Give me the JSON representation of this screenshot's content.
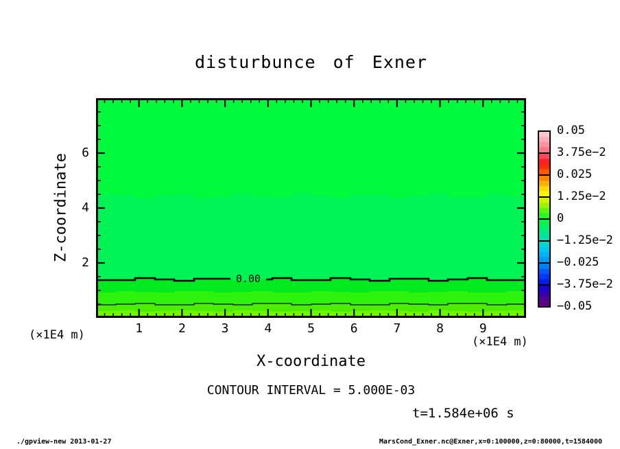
{
  "title": "disturbunce of Exner",
  "x_axis": {
    "label": "X-coordinate",
    "unit": "(×1E4 m)",
    "major_ticks": [
      1,
      2,
      3,
      4,
      5,
      6,
      7,
      8,
      9
    ],
    "minor_step": 0.2,
    "range": [
      0,
      10
    ]
  },
  "y_axis": {
    "label": "Z-coordinate",
    "unit": "(×1E4 m)",
    "major_ticks": [
      2,
      4,
      6
    ],
    "minor_step": 0.5,
    "range": [
      0,
      8
    ]
  },
  "contour_zero_label": "0.00",
  "contour_interval_label": "CONTOUR INTERVAL = 5.000E-03",
  "time_label": "t=1.584e+06 s",
  "footer": {
    "left": "./gpview-new  2013-01-27",
    "right": "MarsCond_Exner.nc@Exner,x=0:100000,z=0:80000,t=1584000"
  },
  "colorbar": {
    "labels": [
      "0.05",
      "3.75e−2",
      "0.025",
      "1.25e−2",
      "0",
      "−1.25e−2",
      "−0.025",
      "−3.75e−2",
      "−0.05"
    ],
    "segments": [
      {
        "colors": [
          "#ffc4ce",
          "#ffaab6",
          "#ff909e",
          "#ff7686"
        ]
      },
      {
        "colors": [
          "#ff4858",
          "#ff1e28",
          "#ff2e00",
          "#ff5a00"
        ]
      },
      {
        "colors": [
          "#ff8600",
          "#ffb000",
          "#ffd800",
          "#fff400"
        ]
      },
      {
        "colors": [
          "#d0f400",
          "#9cf400",
          "#5ef60e",
          "#24f828"
        ]
      },
      {
        "colors": [
          "#00f846",
          "#00f06a",
          "#00e88e",
          "#00e0ac"
        ]
      },
      {
        "colors": [
          "#00d8cc",
          "#00c8ec",
          "#00b2fc",
          "#009af0"
        ]
      },
      {
        "colors": [
          "#0080f0",
          "#005af8",
          "#0038ff",
          "#001ee8"
        ]
      },
      {
        "colors": [
          "#1a00da",
          "#3600b2",
          "#4e0092",
          "#600082"
        ]
      }
    ]
  },
  "chart_data": {
    "type": "heatmap",
    "title": "disturbunce of Exner",
    "xlabel": "X-coordinate",
    "ylabel": "Z-coordinate",
    "x_unit": "(×1E4 m)",
    "y_unit": "(×1E4 m)",
    "xlim": [
      0,
      10
    ],
    "ylim": [
      0,
      8
    ],
    "x_major_ticks": [
      1,
      2,
      3,
      4,
      5,
      6,
      7,
      8,
      9
    ],
    "x_minor_step": 0.2,
    "y_major_ticks": [
      2,
      4,
      6
    ],
    "y_minor_step": 0.5,
    "contour_interval": 0.005,
    "time_seconds": "1.584e+06",
    "colorbar_range": {
      "min": -0.05,
      "max": 0.05,
      "tick_values": [
        0.05,
        0.0375,
        0.025,
        0.0125,
        0,
        -0.0125,
        -0.025,
        -0.0375,
        -0.05
      ]
    },
    "field_description": "horizontally near-uniform Exner-function disturbance; slightly negative above z≈1.4e4 m, increasingly positive toward the surface",
    "bands": [
      {
        "z_from": 4.45,
        "z_to": 8.0,
        "color": "#00fb3c",
        "value_est": -0.001
      },
      {
        "z_from": 1.4,
        "z_to": 4.45,
        "color": "#00f355",
        "value_est": -0.003
      },
      {
        "z_from": 0.95,
        "z_to": 1.4,
        "color": "#00ea20",
        "value_est": 0.002
      },
      {
        "z_from": 0.5,
        "z_to": 0.95,
        "color": "#2cf20c",
        "value_est": 0.004
      },
      {
        "z_from": 0.25,
        "z_to": 0.5,
        "color": "#4cee00",
        "value_est": 0.007
      },
      {
        "z_from": 0.0,
        "z_to": 0.25,
        "color": "#6ff500",
        "value_est": 0.009
      }
    ],
    "contours": [
      {
        "level": 0.0,
        "label": "0.00",
        "z": 1.4,
        "style": "thick"
      },
      {
        "level": 0.005,
        "label": "",
        "z": 0.5,
        "style": "thin"
      }
    ]
  }
}
